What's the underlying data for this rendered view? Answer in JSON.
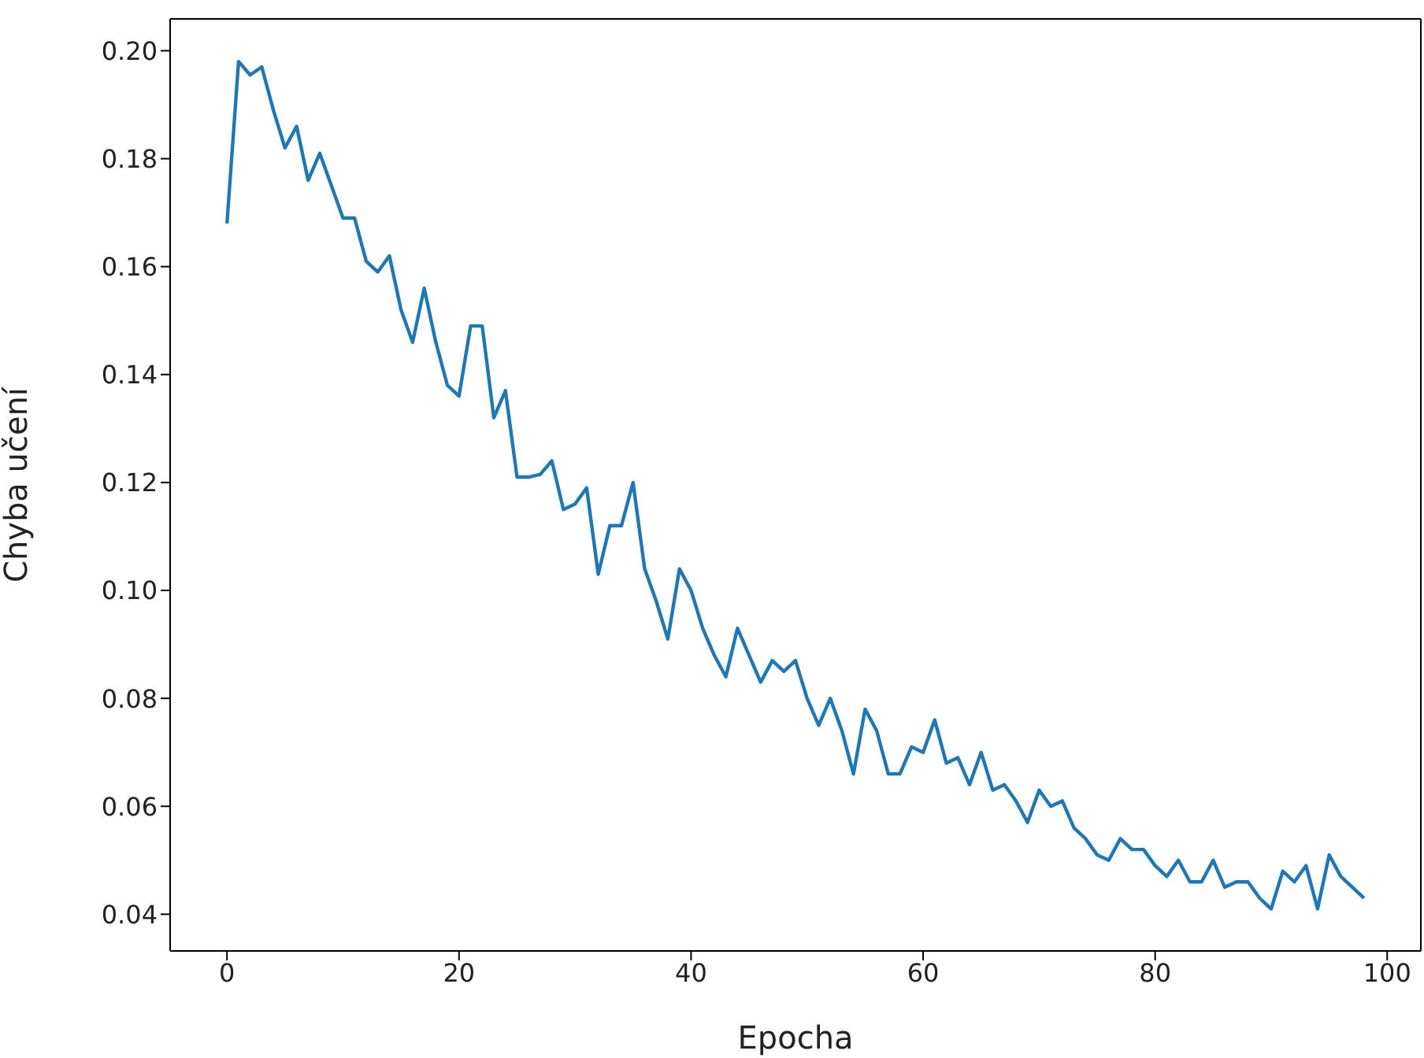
{
  "chart_data": {
    "type": "line",
    "xlabel": "Epocha",
    "ylabel": "Chyba učení",
    "x": [
      0,
      1,
      2,
      3,
      4,
      5,
      6,
      7,
      8,
      9,
      10,
      11,
      12,
      13,
      14,
      15,
      16,
      17,
      18,
      19,
      20,
      21,
      22,
      23,
      24,
      25,
      26,
      27,
      28,
      29,
      30,
      31,
      32,
      33,
      34,
      35,
      36,
      37,
      38,
      39,
      40,
      41,
      42,
      43,
      44,
      45,
      46,
      47,
      48,
      49,
      50,
      51,
      52,
      53,
      54,
      55,
      56,
      57,
      58,
      59,
      60,
      61,
      62,
      63,
      64,
      65,
      66,
      67,
      68,
      69,
      70,
      71,
      72,
      73,
      74,
      75,
      76,
      77,
      78,
      79,
      80,
      81,
      82,
      83,
      84,
      85,
      86,
      87,
      88,
      89,
      90,
      91,
      92,
      93,
      94,
      95,
      96,
      97,
      98
    ],
    "series": [
      {
        "color": "#1f77b4",
        "values": [
          0.168,
          0.198,
          0.1955,
          0.197,
          0.189,
          0.182,
          0.186,
          0.176,
          0.181,
          0.175,
          0.169,
          0.169,
          0.161,
          0.159,
          0.162,
          0.152,
          0.146,
          0.156,
          0.146,
          0.138,
          0.136,
          0.149,
          0.149,
          0.132,
          0.137,
          0.121,
          0.121,
          0.1215,
          0.124,
          0.115,
          0.116,
          0.119,
          0.103,
          0.112,
          0.112,
          0.12,
          0.104,
          0.098,
          0.091,
          0.104,
          0.1,
          0.093,
          0.088,
          0.084,
          0.093,
          0.088,
          0.083,
          0.087,
          0.085,
          0.087,
          0.08,
          0.075,
          0.08,
          0.074,
          0.066,
          0.078,
          0.074,
          0.066,
          0.066,
          0.071,
          0.07,
          0.076,
          0.068,
          0.069,
          0.064,
          0.07,
          0.063,
          0.064,
          0.061,
          0.057,
          0.063,
          0.06,
          0.061,
          0.056,
          0.054,
          0.051,
          0.05,
          0.054,
          0.052,
          0.052,
          0.049,
          0.047,
          0.05,
          0.046,
          0.046,
          0.05,
          0.045,
          0.046,
          0.046,
          0.043,
          0.041,
          0.048,
          0.046,
          0.049,
          0.041,
          0.051,
          0.047,
          0.045,
          0.043
        ]
      }
    ],
    "xlim": [
      -4.9,
      102.9
    ],
    "xticks": [
      0,
      20,
      40,
      60,
      80,
      100
    ],
    "ylim": [
      0.0332,
      0.2059
    ],
    "yticks": [
      {
        "value": 0.04,
        "label": "0.04"
      },
      {
        "value": 0.06,
        "label": "0.06"
      },
      {
        "value": 0.08,
        "label": "0.08"
      },
      {
        "value": 0.1,
        "label": "0.10"
      },
      {
        "value": 0.12,
        "label": "0.12"
      },
      {
        "value": 0.14,
        "label": "0.14"
      },
      {
        "value": 0.16,
        "label": "0.16"
      },
      {
        "value": 0.18,
        "label": "0.18"
      },
      {
        "value": 0.2,
        "label": "0.20"
      }
    ],
    "grid": false,
    "legend": false,
    "marker": "none",
    "line_style": "solid"
  }
}
